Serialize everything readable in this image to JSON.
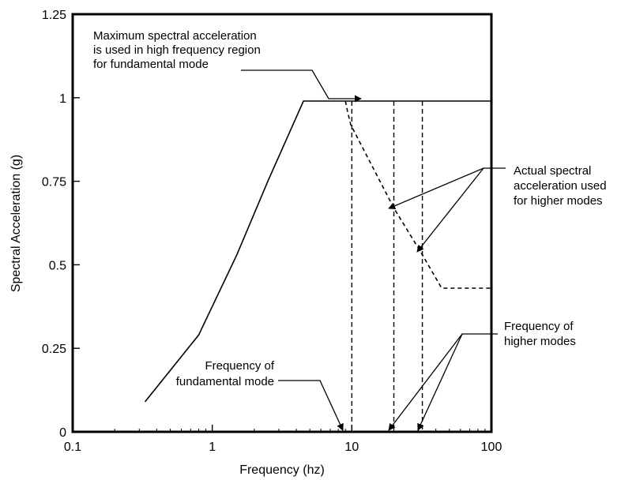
{
  "chart_data": {
    "type": "line",
    "title": "",
    "xlabel": "Frequency (hz)",
    "ylabel": "Spectral Acceleration (g)",
    "x_scale": "log",
    "xlim": [
      0.1,
      100
    ],
    "ylim": [
      0,
      1.25
    ],
    "grid": false,
    "legend": "none",
    "x_ticks": [
      0.1,
      1,
      10,
      100
    ],
    "x_tick_labels": [
      "0.1",
      "1",
      "10",
      "100"
    ],
    "y_ticks": [
      0,
      0.25,
      0.5,
      0.75,
      1,
      1.25
    ],
    "y_tick_labels": [
      "0",
      "0.25",
      "0.5",
      "0.75",
      "1",
      "1.25"
    ],
    "series": [
      {
        "style": "solid",
        "x": [
          0.33,
          0.8,
          1.5,
          2.5,
          4.5,
          100
        ],
        "y": [
          0.09,
          0.29,
          0.53,
          0.75,
          0.99,
          0.99
        ]
      },
      {
        "style": "dashed",
        "x": [
          9.0,
          9.3,
          9.8,
          20,
          32,
          44,
          100
        ],
        "y": [
          0.99,
          0.96,
          0.92,
          0.67,
          0.53,
          0.43,
          0.43
        ]
      }
    ],
    "vertical_lines": [
      {
        "x": 10,
        "style": "dashed",
        "ymax": 0.99
      },
      {
        "x": 20,
        "style": "dashed",
        "ymax": 0.99
      },
      {
        "x": 32,
        "style": "dashed",
        "ymax": 0.99
      }
    ],
    "annotations": [
      {
        "lines": [
          "Maximum spectral acceleration",
          "is used in high frequency region",
          "for fundamental mode"
        ],
        "points_to": [
          {
            "x": 13,
            "y": 0.99
          }
        ]
      },
      {
        "lines": [
          "Actual spectral",
          "acceleration used",
          "for higher modes"
        ],
        "points_to": [
          {
            "x": 20,
            "y": 0.67
          },
          {
            "x": 32,
            "y": 0.53
          }
        ]
      },
      {
        "lines": [
          "Frequency of",
          "higher modes"
        ],
        "points_to": [
          {
            "x": 20,
            "y": 0
          },
          {
            "x": 32,
            "y": 0
          }
        ]
      },
      {
        "lines": [
          "Frequency of",
          "fundamental mode"
        ],
        "points_to": [
          {
            "x": 10,
            "y": 0
          }
        ]
      }
    ]
  }
}
